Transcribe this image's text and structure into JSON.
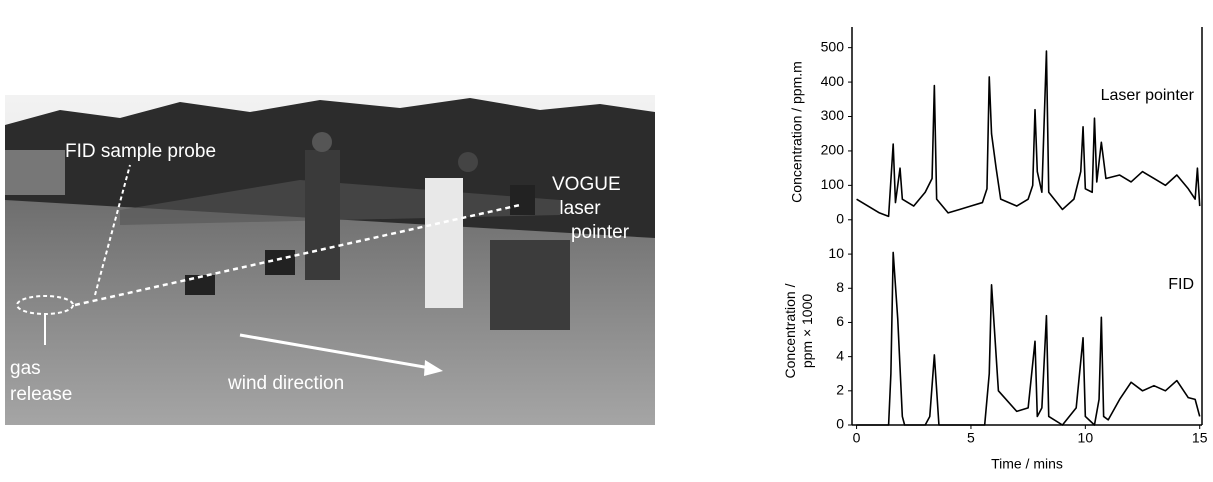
{
  "photo": {
    "labels": [
      "FID sample probe",
      "VOGUE",
      "laser",
      "pointer",
      "gas",
      "release",
      "wind direction"
    ]
  },
  "chart_data": [
    {
      "type": "line",
      "annotation": "Laser pointer",
      "ylabel": [
        "Concentration / ppm.m"
      ],
      "x": [
        0,
        0.5,
        1,
        1.4,
        1.6,
        1.7,
        1.9,
        2.0,
        2.5,
        3.0,
        3.3,
        3.4,
        3.5,
        4,
        4.5,
        5,
        5.5,
        5.7,
        5.8,
        5.9,
        6.1,
        6.3,
        7,
        7.5,
        7.7,
        7.8,
        7.9,
        8.1,
        8.3,
        8.4,
        9,
        9.5,
        9.8,
        9.9,
        10,
        10.3,
        10.4,
        10.5,
        10.7,
        10.9,
        11.5,
        12,
        12.5,
        13,
        13.5,
        14,
        14.5,
        14.8,
        14.9,
        15
      ],
      "series": [
        {
          "color": "#000000",
          "values": [
            60,
            40,
            20,
            10,
            220,
            50,
            150,
            60,
            40,
            80,
            120,
            390,
            60,
            20,
            30,
            40,
            50,
            90,
            415,
            250,
            150,
            60,
            40,
            60,
            100,
            320,
            140,
            80,
            490,
            80,
            30,
            60,
            140,
            270,
            90,
            80,
            295,
            110,
            225,
            120,
            130,
            110,
            140,
            120,
            100,
            130,
            90,
            60,
            150,
            40
          ]
        }
      ],
      "xlim": [
        -0.2,
        15.1
      ],
      "ylim": [
        -50,
        560
      ],
      "yticks": [
        0,
        100,
        200,
        300,
        400,
        500
      ]
    },
    {
      "type": "line",
      "annotation": "FID",
      "ylabel": [
        "Concentration /",
        "ppm × 1000"
      ],
      "xlabel": "Time / mins",
      "x": [
        0,
        1.4,
        1.5,
        1.6,
        1.8,
        2.0,
        2.1,
        3.0,
        3.2,
        3.4,
        3.6,
        5.6,
        5.8,
        5.9,
        6.2,
        7,
        7.5,
        7.8,
        7.9,
        8.1,
        8.3,
        8.4,
        9,
        9.6,
        9.9,
        10,
        10.4,
        10.6,
        10.7,
        10.8,
        11,
        11.5,
        12,
        12.5,
        13,
        13.5,
        14,
        14.5,
        14.8,
        15
      ],
      "series": [
        {
          "color": "#000000",
          "values": [
            0,
            0,
            3,
            10.1,
            6.2,
            0.5,
            0,
            0,
            0.5,
            4.1,
            0,
            0,
            3,
            8.2,
            2,
            0.8,
            1,
            4.9,
            0.5,
            1,
            6.4,
            0.5,
            0,
            1,
            5.1,
            0.5,
            0,
            1.5,
            6.3,
            0.5,
            0.3,
            1.5,
            2.5,
            2,
            2.3,
            2,
            2.6,
            1.6,
            1.5,
            0.5
          ]
        }
      ],
      "xlim": [
        -0.2,
        15.1
      ],
      "ylim": [
        0,
        11
      ],
      "xticks": [
        0,
        5,
        10,
        15
      ],
      "yticks": [
        0,
        2,
        4,
        6,
        8,
        10
      ]
    }
  ]
}
